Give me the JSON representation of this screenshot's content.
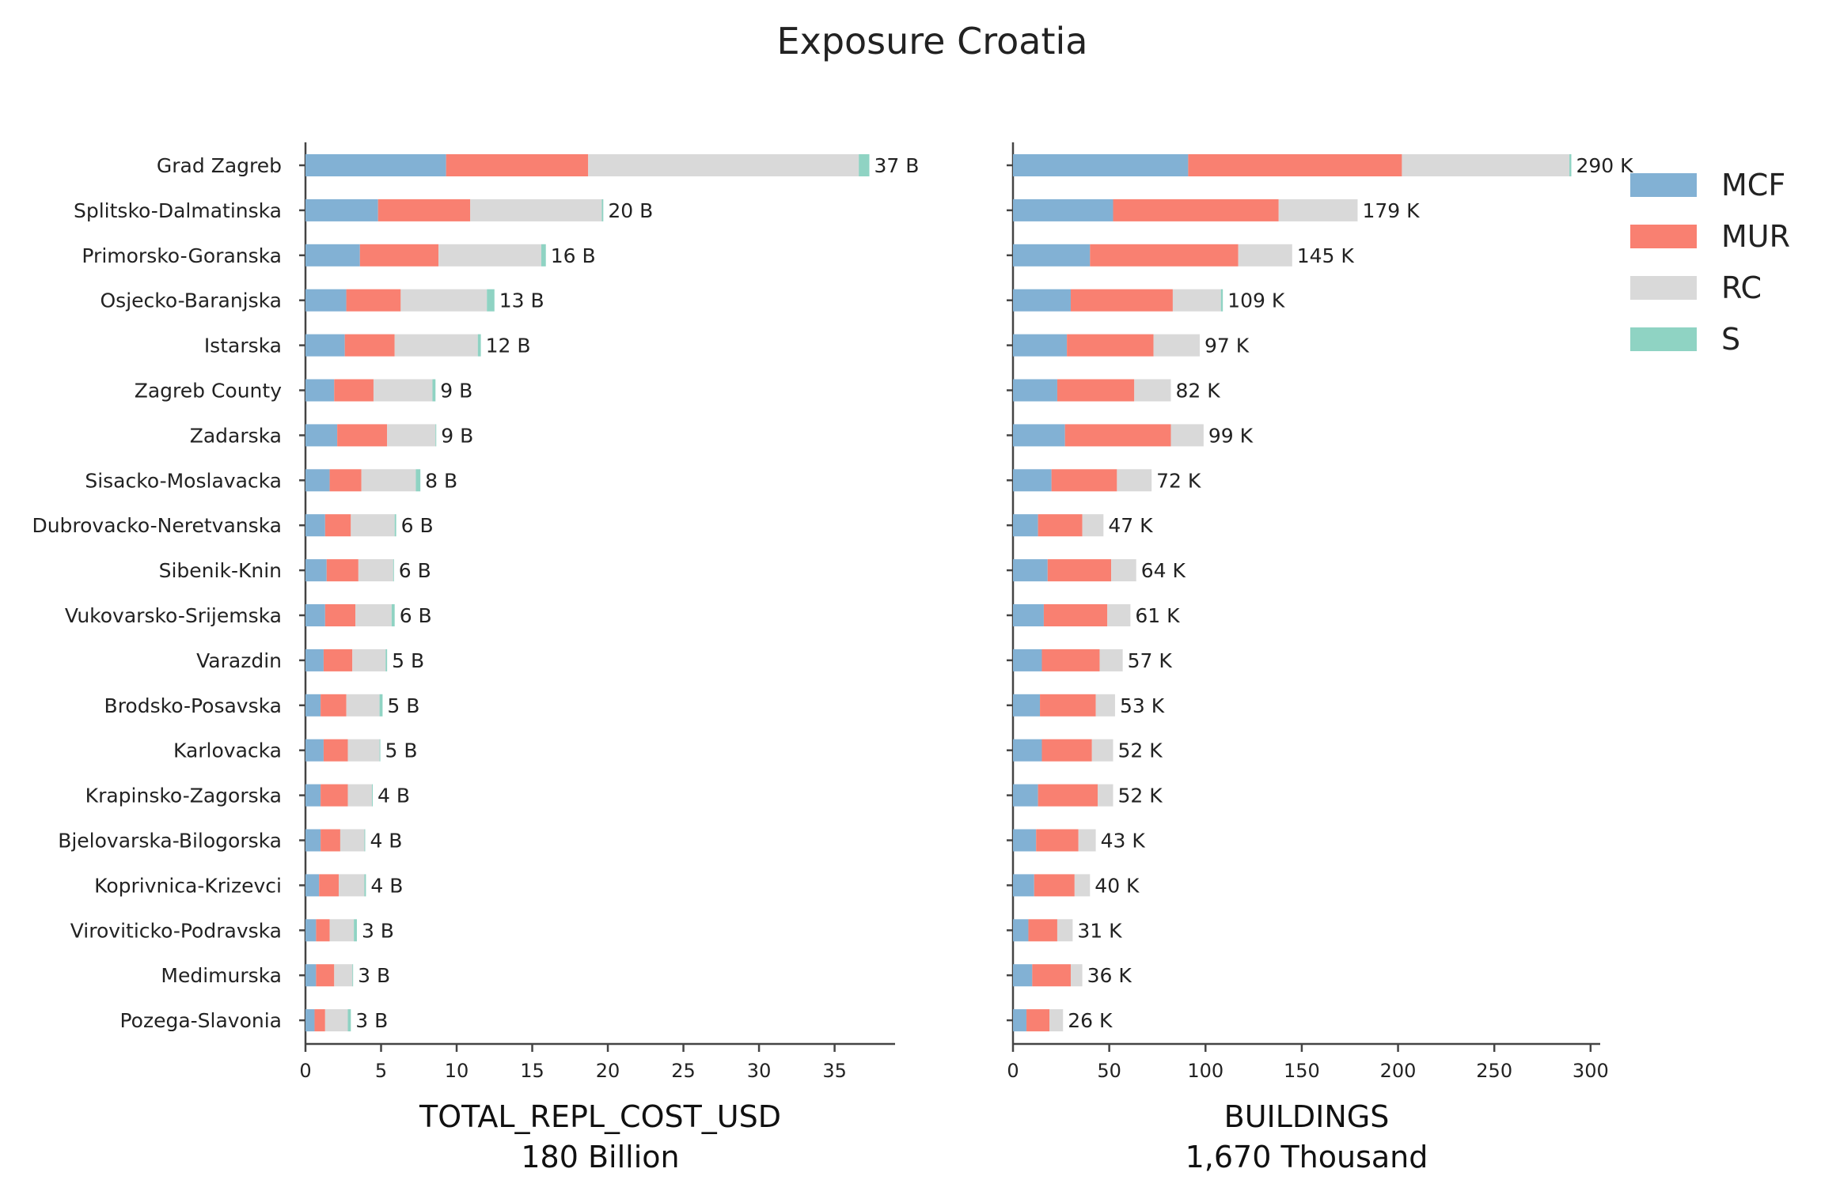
{
  "chart_data": {
    "title": "Exposure Croatia",
    "type": "bar",
    "orientation": "horizontal",
    "stacked": true,
    "legend": {
      "placement": "right",
      "entries": [
        "MCF",
        "MUR",
        "RC",
        "S"
      ]
    },
    "colors": {
      "MCF": "#82b1d4",
      "MUR": "#f98071",
      "RC": "#d9d9d9",
      "S": "#8fd3c3"
    },
    "categories": [
      "Grad Zagreb",
      "Splitsko-Dalmatinska",
      "Primorsko-Goranska",
      "Osjecko-Baranjska",
      "Istarska",
      "Zagreb County",
      "Zadarska",
      "Sisacko-Moslavacka",
      "Dubrovacko-Neretvanska",
      "Sibenik-Knin",
      "Vukovarsko-Srijemska",
      "Varazdin",
      "Brodsko-Posavska",
      "Karlovacka",
      "Krapinsko-Zagorska",
      "Bjelovarska-Bilogorska",
      "Koprivnica-Krizevci",
      "Viroviticko-Podravska",
      "Medimurska",
      "Pozega-Slavonia"
    ],
    "panels": [
      {
        "xlabel": "TOTAL_REPL_COST_USD",
        "subtitle": "180 Billion",
        "xlim": [
          0,
          39
        ],
        "xticks": [
          0,
          5,
          10,
          15,
          20,
          25,
          30,
          35
        ],
        "labels": [
          "37 B",
          "20 B",
          "16 B",
          "13 B",
          "12 B",
          "9 B",
          "9 B",
          "8 B",
          "6 B",
          "6 B",
          "6 B",
          "5 B",
          "5 B",
          "5 B",
          "4 B",
          "4 B",
          "4 B",
          "3 B",
          "3 B",
          "3 B"
        ],
        "series": [
          {
            "name": "MCF",
            "values": [
              9.3,
              4.8,
              3.6,
              2.7,
              2.6,
              1.9,
              2.1,
              1.6,
              1.3,
              1.4,
              1.3,
              1.2,
              1.0,
              1.2,
              1.0,
              1.0,
              0.9,
              0.7,
              0.7,
              0.6
            ]
          },
          {
            "name": "MUR",
            "values": [
              9.4,
              6.1,
              5.2,
              3.6,
              3.3,
              2.6,
              3.3,
              2.1,
              1.7,
              2.1,
              2.0,
              1.9,
              1.7,
              1.6,
              1.8,
              1.3,
              1.3,
              0.9,
              1.2,
              0.7
            ]
          },
          {
            "name": "RC",
            "values": [
              17.9,
              8.7,
              6.8,
              5.7,
              5.5,
              3.9,
              3.2,
              3.6,
              2.9,
              2.3,
              2.4,
              2.2,
              2.2,
              2.1,
              1.6,
              1.6,
              1.7,
              1.6,
              1.2,
              1.5
            ]
          },
          {
            "name": "S",
            "values": [
              0.7,
              0.1,
              0.3,
              0.5,
              0.2,
              0.2,
              0.05,
              0.3,
              0.1,
              0.05,
              0.2,
              0.1,
              0.2,
              0.05,
              0.05,
              0.05,
              0.1,
              0.2,
              0.05,
              0.2
            ]
          }
        ]
      },
      {
        "xlabel": "BUILDINGS",
        "subtitle": "1,670 Thousand",
        "xlim": [
          0,
          305
        ],
        "xticks": [
          0,
          50,
          100,
          150,
          200,
          250,
          300
        ],
        "labels": [
          "290 K",
          "179 K",
          "145 K",
          "109 K",
          "97 K",
          "82 K",
          "99 K",
          "72 K",
          "47 K",
          "64 K",
          "61 K",
          "57 K",
          "53 K",
          "52 K",
          "52 K",
          "43 K",
          "40 K",
          "31 K",
          "36 K",
          "26 K"
        ],
        "series": [
          {
            "name": "MCF",
            "values": [
              91,
              52,
              40,
              30,
              28,
              23,
              27,
              20,
              13,
              18,
              16,
              15,
              14,
              15,
              13,
              12,
              11,
              8,
              10,
              7
            ]
          },
          {
            "name": "MUR",
            "values": [
              111,
              86,
              77,
              53,
              45,
              40,
              55,
              34,
              23,
              33,
              33,
              30,
              29,
              26,
              31,
              22,
              21,
              15,
              20,
              12
            ]
          },
          {
            "name": "RC",
            "values": [
              87,
              41,
              28,
              25,
              24,
              19,
              17,
              18,
              11,
              13,
              12,
              12,
              10,
              11,
              8,
              9,
              8,
              8,
              6,
              7
            ]
          },
          {
            "name": "S",
            "values": [
              1,
              0,
              0,
              1,
              0,
              0,
              0,
              0,
              0,
              0,
              0,
              0,
              0,
              0,
              0,
              0,
              0,
              0,
              0,
              0
            ]
          }
        ]
      }
    ]
  }
}
